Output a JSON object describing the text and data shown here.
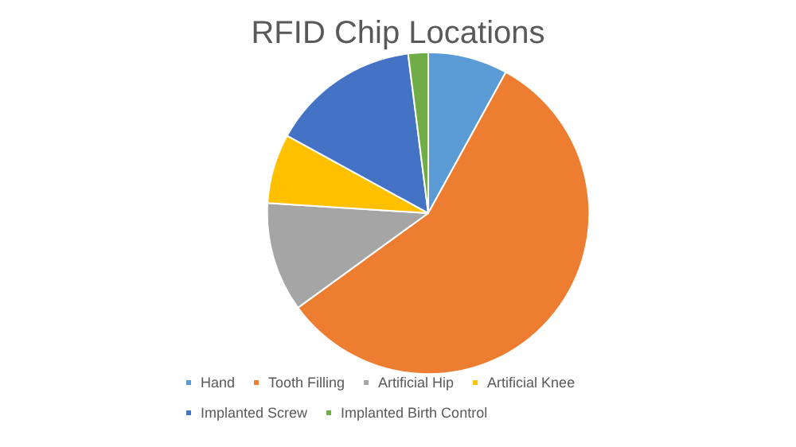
{
  "chart_data": {
    "type": "pie",
    "title": "RFID Chip Locations",
    "categories": [
      "Hand",
      "Tooth Filling",
      "Artificial Hip",
      "Artificial Knee",
      "Implanted Screw",
      "Implanted Birth Control"
    ],
    "values": [
      8,
      57,
      11,
      7,
      15,
      2
    ],
    "colors": [
      "#5b9bd5",
      "#ed7d31",
      "#a5a5a5",
      "#ffc000",
      "#4472c4",
      "#70ad47"
    ],
    "legend": "bottom"
  }
}
